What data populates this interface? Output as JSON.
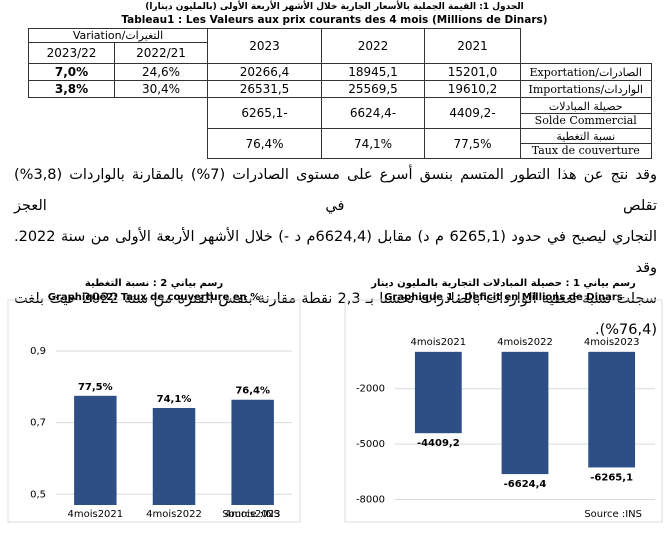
{
  "header": {
    "title_ar": "الجدول 1: القيمة الجملية بالأسعار الجارية خلال الأشهر الأربعة الأولى (بالمليون دينارا)",
    "title_fr": "Tableau1 : Les Valeurs aux prix courants des 4 mois  (Millions de Dinars)"
  },
  "table": {
    "variation_header": "Variation/التغيرات",
    "variation_periods": [
      "2023/22",
      "2022/21"
    ],
    "years": [
      "2023",
      "2022",
      "2021"
    ],
    "rows": [
      {
        "variation": [
          "7,0%",
          "24,6%"
        ],
        "amounts": [
          "20266,4",
          "18945,1",
          "15201,0"
        ],
        "label": [
          "Exportation/الصادرات"
        ]
      },
      {
        "variation": [
          "3,8%",
          "30,4%"
        ],
        "amounts": [
          "26531,5",
          "25569,5",
          "19610,2"
        ],
        "label": [
          "Importations/الواردات"
        ]
      },
      {
        "amounts": [
          "6265,1-",
          "6624,4-",
          "4409,2-"
        ],
        "label": [
          "حصيلة المبادلات",
          "Solde Commercial"
        ]
      },
      {
        "amounts": [
          "76,4%",
          "74,1%",
          "77,5%"
        ],
        "label": [
          "نسبة التغطية",
          "Taux de couverture"
        ]
      }
    ]
  },
  "paragraph": [
    "وقد نتج عن هذا التطور المتسم بنسق أسرع على مستوى الصادرات (7%) بالمقارنة بالواردات (3,8%) تقلص في العجز",
    "التجاري ليصبح في حدود (6265,1 م د) مقابل (6624,4م د -) خلال الأشهر الأربعة الأولى من سنة 2022. وقد",
    "سجلت نسبة تغطية الواردات بالصادرات تحسنا بـ 2,3 نقطة مقارنة بنفس الفترة من سنة 2022 حيث بلغت (76,4%)."
  ],
  "charts": [
    {
      "type": "bar",
      "title_ar": "رسم بياني 2 : نسبة التغطية",
      "title": "Graphique2: Taux de couverture en %",
      "categories": [
        "4mois2021",
        "4mois2022",
        "4mois2023"
      ],
      "values": [
        0.775,
        0.741,
        0.764
      ],
      "value_labels": [
        "77,5%",
        "74,1%",
        "76,4%"
      ],
      "color": "#2d4f85",
      "ylim": [
        0.47,
        0.97
      ],
      "yticks": [
        {
          "value": 0.5,
          "label": "0,5"
        },
        {
          "value": 0.7,
          "label": "0,7"
        },
        {
          "value": 0.9,
          "label": "0,9"
        }
      ],
      "grid": true,
      "source": "Source :INS"
    },
    {
      "type": "bar",
      "title_ar": "رسم بياني 1 : حصيلة المبادلات التجارية بالمليون دينار",
      "title": "Graphique 1 : Deficit en Millions de Dinars",
      "categories": [
        "4mois2021",
        "4mois2022",
        "4mois2023"
      ],
      "values": [
        -4409.2,
        -6624.4,
        -6265.1
      ],
      "value_labels": [
        "-4409,2",
        "-6624,4",
        "-6265,1"
      ],
      "color": "#2d4f85",
      "ylim": [
        -8300,
        1400
      ],
      "yticks": [
        -2000,
        -5000,
        -8000
      ],
      "grid": true,
      "source": "Source :INS"
    }
  ]
}
